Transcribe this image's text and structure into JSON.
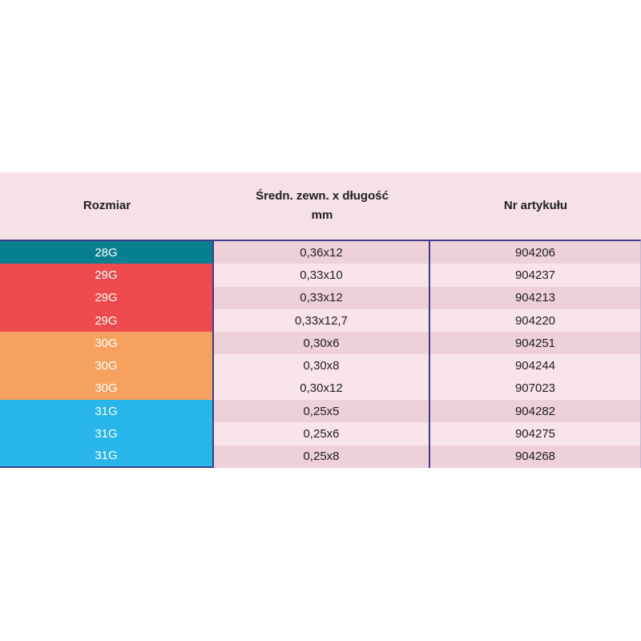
{
  "table": {
    "header": {
      "col1": "Rozmiar",
      "col2_line1": "Średn. zewn. x długość",
      "col2_line2": "mm",
      "col3": "Nr artykułu"
    },
    "rows": [
      {
        "size": "28G",
        "dimension": "0,36x12",
        "article": "904206",
        "color": "#06808f",
        "band": "dark"
      },
      {
        "size": "29G",
        "dimension": "0,33x10",
        "article": "904237",
        "color": "#ef4b4e",
        "band": "light"
      },
      {
        "size": "29G",
        "dimension": "0,33x12",
        "article": "904213",
        "color": "#ef4b4e",
        "band": "dark"
      },
      {
        "size": "29G",
        "dimension": "0,33x12,7",
        "article": "904220",
        "color": "#ef4b4e",
        "band": "light"
      },
      {
        "size": "30G",
        "dimension": "0,30x6",
        "article": "904251",
        "color": "#f7a160",
        "band": "dark"
      },
      {
        "size": "30G",
        "dimension": "0,30x8",
        "article": "904244",
        "color": "#f7a160",
        "band": "light"
      },
      {
        "size": "30G",
        "dimension": "0,30x12",
        "article": "907023",
        "color": "#f7a160",
        "band": "light"
      },
      {
        "size": "31G",
        "dimension": "0,25x5",
        "article": "904282",
        "color": "#27b5ea",
        "band": "dark"
      },
      {
        "size": "31G",
        "dimension": "0,25x6",
        "article": "904275",
        "color": "#27b5ea",
        "band": "light"
      },
      {
        "size": "31G",
        "dimension": "0,25x8",
        "article": "904268",
        "color": "#27b5ea",
        "band": "dark"
      }
    ],
    "colors": {
      "header_bg": "#f6e1e6",
      "row_dark": "#eed0d8",
      "row_light": "#f8e4e9",
      "border": "#3d3d8c",
      "size_28g": "#06808f",
      "size_29g": "#ef4b4e",
      "size_30g": "#f7a160",
      "size_31g": "#27b5ea"
    }
  }
}
